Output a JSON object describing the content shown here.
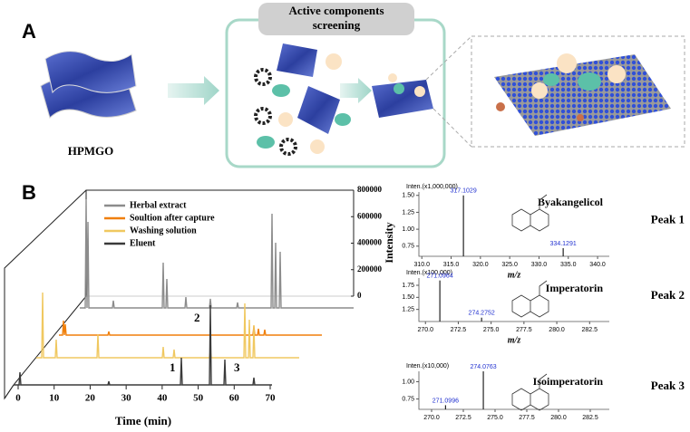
{
  "panel_a": {
    "label": "A",
    "screening_title": [
      "Active components",
      "screening"
    ],
    "material": "HPMGO"
  },
  "panel_b": {
    "label": "B",
    "chromatogram": {
      "x_label": "Time (min)",
      "y_label": "Intensity",
      "xlim": [
        0,
        70
      ],
      "xticks": [
        0,
        10,
        20,
        30,
        40,
        50,
        60,
        70
      ],
      "ylim": [
        0,
        800000
      ],
      "yticks": [
        0,
        200000,
        400000,
        600000,
        800000
      ],
      "legend": [
        {
          "name": "Herbal extract",
          "color": "#8c8c8c"
        },
        {
          "name": "Soultion after capture",
          "color": "#f07f0a"
        },
        {
          "name": "Washing solution",
          "color": "#f0c860"
        },
        {
          "name": "Eluent",
          "color": "#3a3a3a"
        }
      ],
      "peak_labels": [
        "1",
        "2",
        "3"
      ]
    },
    "spectra": [
      {
        "scale": "Inten.(x1,000,000)",
        "compound": "Byakangelicol",
        "peak": "Peak 1",
        "x_label": "m/z",
        "xlim": [
          309.5,
          342
        ],
        "xticks": [
          {
            "value": 310,
            "label": "310.0"
          },
          {
            "value": 315,
            "label": "315.0"
          },
          {
            "value": 320,
            "label": "320.0"
          },
          {
            "value": 325,
            "label": "325.0"
          },
          {
            "value": 330,
            "label": "330.0"
          },
          {
            "value": 335,
            "label": "335.0"
          },
          {
            "value": 340,
            "label": "340.0"
          }
        ],
        "ylim": [
          0.6,
          1.55
        ],
        "yticks": [
          {
            "value": 0.75,
            "label": "0.75"
          },
          {
            "value": 1,
            "label": "1.00"
          },
          {
            "value": 1.25,
            "label": "1.25"
          },
          {
            "value": 1.5,
            "label": "1.50"
          }
        ],
        "peaks": [
          {
            "mz": 317.1029,
            "intensity": 1.5
          },
          {
            "mz": 334.1291,
            "intensity": 0.72
          }
        ]
      },
      {
        "scale": "Inten.(x100,000)",
        "compound": "Imperatorin",
        "peak": "Peak 2",
        "x_label": "m/z",
        "xlim": [
          269.5,
          284
        ],
        "xticks": [
          {
            "value": 270,
            "label": "270.0"
          },
          {
            "value": 272.5,
            "label": "272.5"
          },
          {
            "value": 275,
            "label": "275.0"
          },
          {
            "value": 277.5,
            "label": "277.5"
          },
          {
            "value": 280,
            "label": "280.0"
          },
          {
            "value": 282.5,
            "label": "282.5"
          }
        ],
        "ylim": [
          1.0,
          1.9
        ],
        "yticks": [
          {
            "value": 1.25,
            "label": "1.25"
          },
          {
            "value": 1.5,
            "label": "1.50"
          },
          {
            "value": 1.75,
            "label": "1.75"
          }
        ],
        "peaks": [
          {
            "mz": 271.0964,
            "intensity": 1.85
          },
          {
            "mz": 274.2752,
            "intensity": 1.08
          }
        ]
      },
      {
        "scale": "Inten.(x10,000)",
        "compound": "Isoimperatorin",
        "peak": "Peak 3",
        "xlim": [
          269,
          284
        ],
        "xticks": [
          {
            "value": 270,
            "label": "270.0"
          },
          {
            "value": 272.5,
            "label": "272.5"
          },
          {
            "value": 275,
            "label": "275.0"
          },
          {
            "value": 277.5,
            "label": "277.5"
          },
          {
            "value": 280,
            "label": "280.0"
          },
          {
            "value": 282.5,
            "label": "282.5"
          }
        ],
        "ylim": [
          0.6,
          1.15
        ],
        "yticks": [
          {
            "value": 0.75,
            "label": "0.75"
          },
          {
            "value": 1,
            "label": "1.00"
          }
        ],
        "peaks": [
          {
            "mz": 271.0996,
            "intensity": 0.66
          },
          {
            "mz": 274.0763,
            "intensity": 1.15
          }
        ]
      }
    ]
  }
}
